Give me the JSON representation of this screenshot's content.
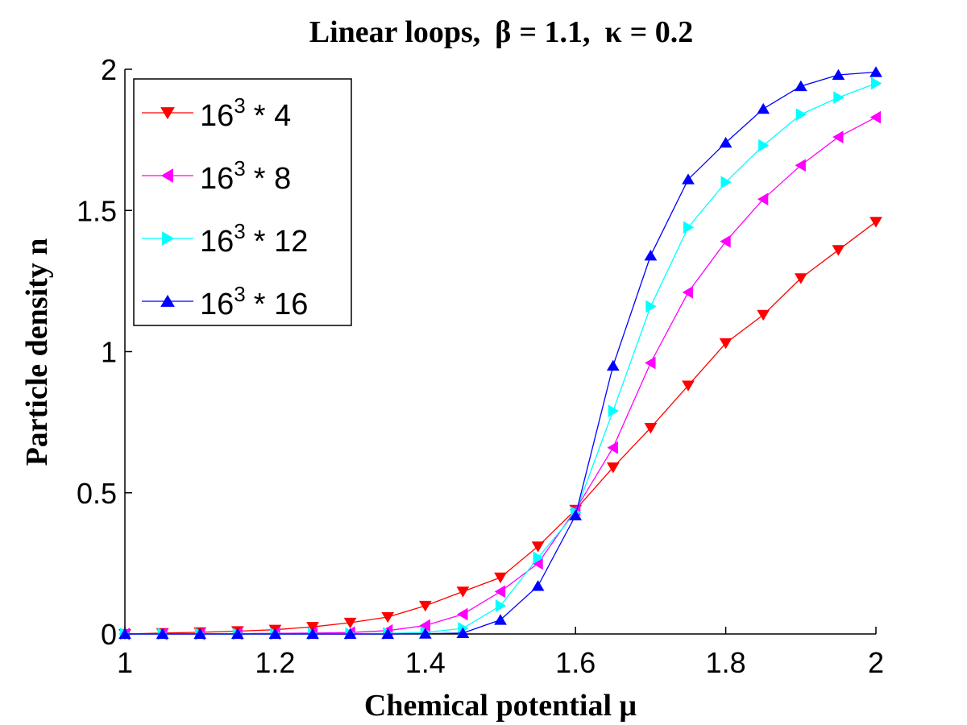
{
  "chart_data": {
    "type": "line",
    "title_parts": {
      "prefix": "Linear loops,",
      "beta_symbol": "β",
      "beta_value": "= 1.1,",
      "kappa_symbol": "κ",
      "kappa_value": "= 0.2"
    },
    "xlabel": "Chemical potential μ",
    "ylabel": "Particle density n",
    "xlim": [
      1,
      2
    ],
    "ylim": [
      0,
      2
    ],
    "xticks": [
      "1",
      "1.2",
      "1.4",
      "1.6",
      "1.8",
      "2"
    ],
    "yticks": [
      "0",
      "0.5",
      "1",
      "1.5",
      "2"
    ],
    "legend_position": "top-left",
    "x": [
      1.0,
      1.05,
      1.1,
      1.15,
      1.2,
      1.25,
      1.3,
      1.35,
      1.4,
      1.45,
      1.5,
      1.55,
      1.6,
      1.65,
      1.7,
      1.75,
      1.8,
      1.85,
      1.9,
      1.95,
      2.0
    ],
    "series": [
      {
        "name": "16^3 * 4",
        "legend_base": "16",
        "legend_exp": "3",
        "legend_tail": "* 4",
        "color": "#ff0000",
        "marker": "triangle-down",
        "values": [
          0.0,
          0.003,
          0.006,
          0.01,
          0.015,
          0.025,
          0.04,
          0.06,
          0.1,
          0.15,
          0.2,
          0.31,
          0.44,
          0.59,
          0.73,
          0.88,
          1.03,
          1.13,
          1.26,
          1.36,
          1.46
        ]
      },
      {
        "name": "16^3 * 8",
        "legend_base": "16",
        "legend_exp": "3",
        "legend_tail": "* 8",
        "color": "#ff00ff",
        "marker": "triangle-left",
        "values": [
          0.0,
          0.0,
          0.0,
          0.001,
          0.002,
          0.003,
          0.005,
          0.012,
          0.03,
          0.07,
          0.15,
          0.25,
          0.44,
          0.66,
          0.96,
          1.21,
          1.39,
          1.54,
          1.66,
          1.76,
          1.83
        ]
      },
      {
        "name": "16^3 * 12",
        "legend_base": "16",
        "legend_exp": "3",
        "legend_tail": "* 12",
        "color": "#00ffff",
        "marker": "triangle-right",
        "values": [
          0.0,
          0.0,
          0.0,
          0.0,
          0.0,
          0.0,
          0.001,
          0.002,
          0.005,
          0.02,
          0.1,
          0.27,
          0.43,
          0.79,
          1.16,
          1.44,
          1.6,
          1.73,
          1.84,
          1.9,
          1.95
        ]
      },
      {
        "name": "16^3 * 16",
        "legend_base": "16",
        "legend_exp": "3",
        "legend_tail": "* 16",
        "color": "#0000ff",
        "marker": "triangle-up",
        "values": [
          0.0,
          0.0,
          0.0,
          0.0,
          0.0,
          0.0,
          0.0,
          0.0,
          0.001,
          0.003,
          0.05,
          0.17,
          0.42,
          0.95,
          1.34,
          1.61,
          1.74,
          1.86,
          1.94,
          1.98,
          1.99
        ]
      }
    ]
  }
}
